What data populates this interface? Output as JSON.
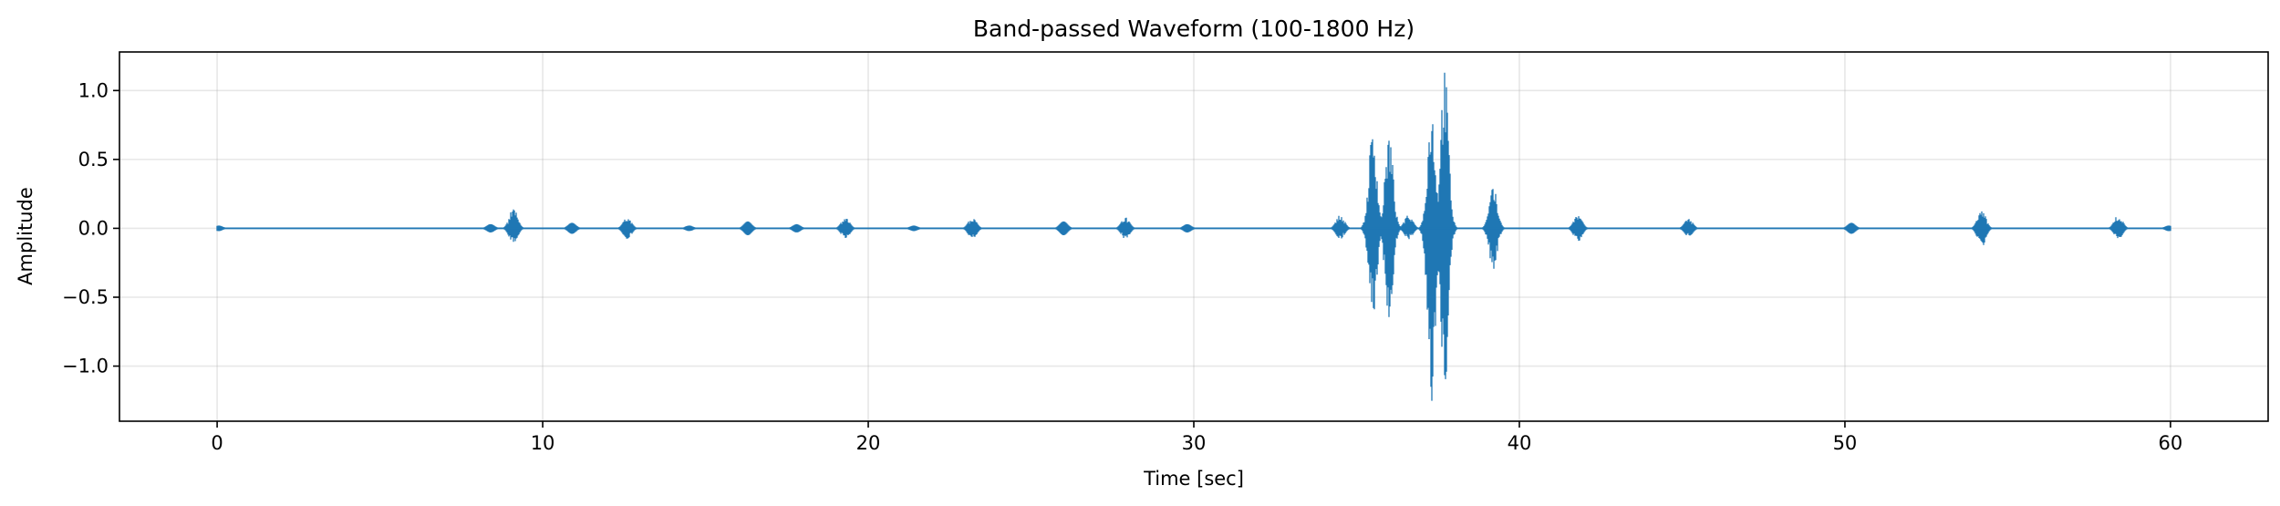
{
  "chart_data": {
    "type": "line",
    "title": "Band-passed Waveform (100-1800 Hz)",
    "xlabel": "Time [sec]",
    "ylabel": "Amplitude",
    "xlim": [
      -3,
      63
    ],
    "ylim": [
      -1.4,
      1.28
    ],
    "xticks": [
      0,
      10,
      20,
      30,
      40,
      50,
      60
    ],
    "xtick_labels": [
      "0",
      "10",
      "20",
      "30",
      "40",
      "50",
      "60"
    ],
    "yticks": [
      -1.0,
      -0.5,
      0.0,
      0.5,
      1.0
    ],
    "ytick_labels": [
      "−1.0",
      "−0.5",
      "0.0",
      "0.5",
      "1.0"
    ],
    "grid": true,
    "color": "#1f77b4",
    "duration": [
      0,
      60
    ],
    "envelope_bursts": [
      {
        "t": 0.05,
        "max": 0.02,
        "min": -0.02
      },
      {
        "t": 8.4,
        "max": 0.03,
        "min": -0.03
      },
      {
        "t": 9.1,
        "max": 0.15,
        "min": -0.12
      },
      {
        "t": 10.9,
        "max": 0.04,
        "min": -0.04
      },
      {
        "t": 12.6,
        "max": 0.08,
        "min": -0.08
      },
      {
        "t": 14.5,
        "max": 0.02,
        "min": -0.02
      },
      {
        "t": 16.3,
        "max": 0.05,
        "min": -0.05
      },
      {
        "t": 17.8,
        "max": 0.03,
        "min": -0.03
      },
      {
        "t": 19.3,
        "max": 0.08,
        "min": -0.08
      },
      {
        "t": 21.4,
        "max": 0.02,
        "min": -0.02
      },
      {
        "t": 23.2,
        "max": 0.08,
        "min": -0.08
      },
      {
        "t": 26.0,
        "max": 0.05,
        "min": -0.05
      },
      {
        "t": 27.9,
        "max": 0.08,
        "min": -0.08
      },
      {
        "t": 29.8,
        "max": 0.03,
        "min": -0.03
      },
      {
        "t": 34.5,
        "max": 0.1,
        "min": -0.08
      },
      {
        "t": 35.5,
        "max": 0.74,
        "min": -0.66
      },
      {
        "t": 36.0,
        "max": 0.7,
        "min": -0.66
      },
      {
        "t": 36.6,
        "max": 0.1,
        "min": -0.08
      },
      {
        "t": 37.3,
        "max": 0.9,
        "min": -1.3
      },
      {
        "t": 37.7,
        "max": 1.18,
        "min": -1.2
      },
      {
        "t": 39.2,
        "max": 0.3,
        "min": -0.3
      },
      {
        "t": 41.8,
        "max": 0.1,
        "min": -0.1
      },
      {
        "t": 45.2,
        "max": 0.07,
        "min": -0.06
      },
      {
        "t": 50.2,
        "max": 0.04,
        "min": -0.04
      },
      {
        "t": 54.2,
        "max": 0.14,
        "min": -0.14
      },
      {
        "t": 58.4,
        "max": 0.1,
        "min": -0.08
      },
      {
        "t": 59.95,
        "max": 0.02,
        "min": -0.02
      }
    ]
  }
}
